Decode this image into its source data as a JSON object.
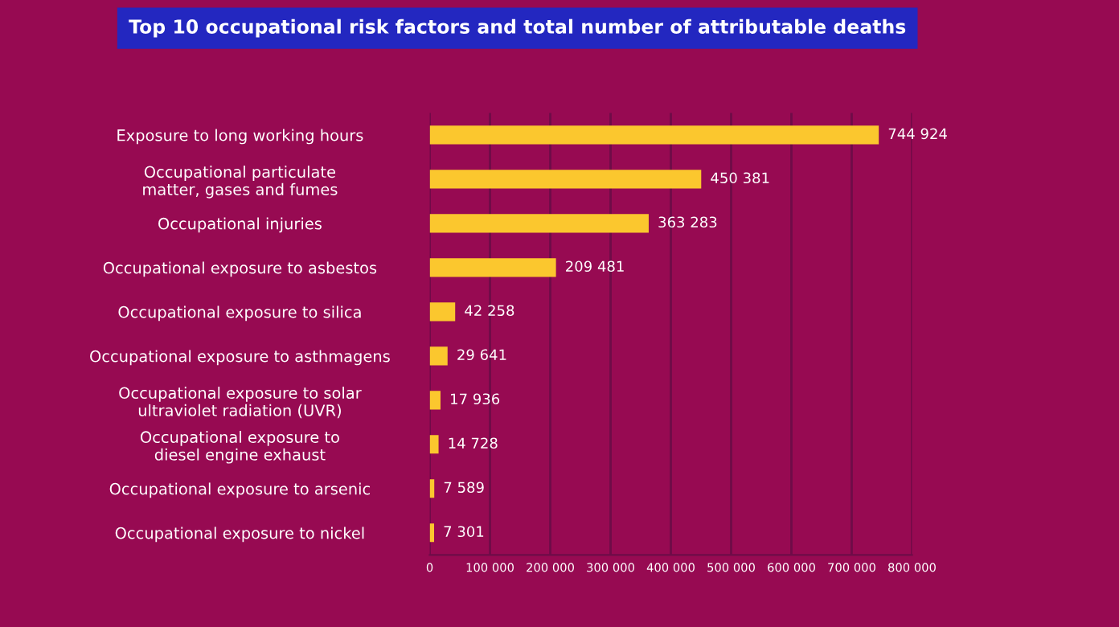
{
  "chart_data": {
    "type": "bar",
    "orientation": "horizontal",
    "title": "Top 10 occupational risk factors and total number of attributable deaths",
    "categories": [
      "Exposure to long working hours",
      "Occupational particulate\nmatter, gases and fumes",
      "Occupational injuries",
      "Occupational exposure to asbestos",
      "Occupational exposure to silica",
      "Occupational exposure to asthmagens",
      "Occupational exposure to solar\nultraviolet radiation (UVR)",
      "Occupational exposure to\ndiesel engine exhaust",
      "Occupational exposure to arsenic",
      "Occupational exposure to nickel"
    ],
    "values": [
      744924,
      450381,
      363283,
      209481,
      42258,
      29641,
      17936,
      14728,
      7589,
      7301
    ],
    "value_labels": [
      "744 924",
      "450 381",
      "363 283",
      "209 481",
      "42 258",
      "29 641",
      "17 936",
      "14 728",
      "7 589",
      "7 301"
    ],
    "color": "#fbc72e",
    "xlim": [
      0,
      800000
    ],
    "xticks": [
      0,
      {
        "value": 100000,
        "label": "100 000"
      },
      {
        "value": 200000,
        "label": "200 000"
      },
      {
        "value": 300000,
        "label": "300 000"
      },
      {
        "value": 400000,
        "label": "400 000"
      },
      {
        "value": 500000,
        "label": "500 000"
      },
      {
        "value": 600000,
        "label": "600 000"
      },
      {
        "value": 700000,
        "label": "700 000"
      },
      {
        "value": 800000,
        "label": "800 000"
      }
    ],
    "grid": "x"
  }
}
